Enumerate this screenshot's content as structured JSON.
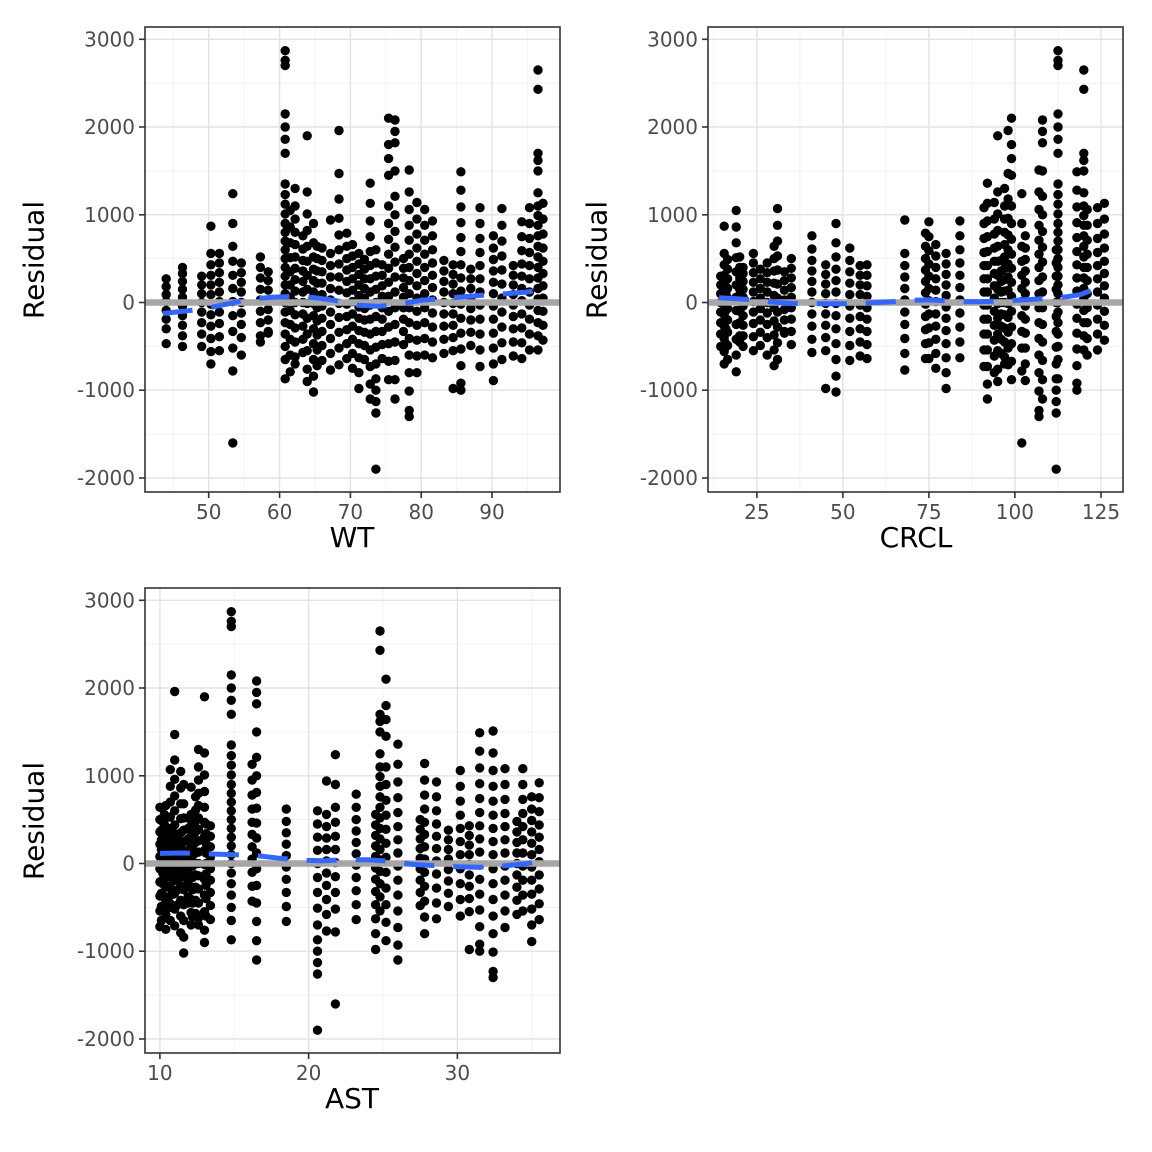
{
  "chart_data": {
    "type": "scatter",
    "ylabel": "Residual",
    "ylim": [
      -2160,
      3140
    ],
    "yticks": [
      -2000,
      -1000,
      0,
      1000,
      2000,
      3000
    ],
    "ytick_labels": [
      "-2000",
      "-1000",
      "0",
      "1000",
      "2000",
      "3000"
    ],
    "y_minor": [
      -1500,
      -500,
      500,
      1500,
      2500
    ],
    "reference_line_y": 0,
    "grid": true,
    "legend": "none",
    "colors": {
      "point": "#000000",
      "smoother": "#3366FF",
      "reference": "#A6A6A6",
      "grid_major": "#E3E3E3",
      "grid_minor": "#F1F1F1",
      "panel_border": "#333333",
      "tick_mark": "#333333",
      "tick_label": "#4D4D4D",
      "axis_title": "#000000",
      "background": "#FFFFFF"
    },
    "panels": [
      {
        "xlabel": "WT",
        "covariate": "wt",
        "xlim": [
          41.0,
          99.6
        ],
        "xticks": [
          50,
          60,
          70,
          80,
          90
        ],
        "xtick_labels": [
          "50",
          "60",
          "70",
          "80",
          "90"
        ],
        "x_minor": [
          45,
          55,
          65,
          75,
          85,
          95
        ],
        "smoother": [
          [
            43.5,
            -125
          ],
          [
            47,
            -95
          ],
          [
            50,
            -60
          ],
          [
            53,
            -10
          ],
          [
            56,
            40
          ],
          [
            59,
            60
          ],
          [
            62,
            70
          ],
          [
            65,
            55
          ],
          [
            68,
            20
          ],
          [
            71,
            -30
          ],
          [
            74,
            -45
          ],
          [
            77,
            -20
          ],
          [
            80,
            25
          ],
          [
            83,
            45
          ],
          [
            86,
            65
          ],
          [
            89,
            85
          ],
          [
            92,
            100
          ],
          [
            95,
            120
          ],
          [
            97.5,
            155
          ]
        ]
      },
      {
        "xlabel": "CRCL",
        "covariate": "crcl",
        "xlim": [
          10.8,
          131.4
        ],
        "xticks": [
          25,
          50,
          75,
          100,
          125
        ],
        "xtick_labels": [
          "25",
          "50",
          "75",
          "100",
          "125"
        ],
        "x_minor": [
          12.5,
          37.5,
          62.5,
          87.5,
          112.5
        ],
        "smoother": [
          [
            14,
            55
          ],
          [
            18,
            45
          ],
          [
            22,
            35
          ],
          [
            26,
            20
          ],
          [
            30,
            5
          ],
          [
            35,
            -10
          ],
          [
            40,
            -15
          ],
          [
            45,
            -15
          ],
          [
            50,
            -15
          ],
          [
            55,
            -10
          ],
          [
            60,
            0
          ],
          [
            65,
            10
          ],
          [
            70,
            25
          ],
          [
            75,
            30
          ],
          [
            80,
            20
          ],
          [
            85,
            10
          ],
          [
            90,
            10
          ],
          [
            95,
            15
          ],
          [
            100,
            25
          ],
          [
            105,
            35
          ],
          [
            110,
            50
          ],
          [
            115,
            65
          ],
          [
            119,
            90
          ],
          [
            123,
            150
          ],
          [
            126,
            230
          ]
        ]
      },
      {
        "xlabel": "AST",
        "covariate": "ast",
        "xlim": [
          9.0,
          36.9
        ],
        "xticks": [
          10,
          20,
          30
        ],
        "xtick_labels": [
          "10",
          "20",
          "30"
        ],
        "x_minor": [
          15,
          25,
          35
        ],
        "smoother": [
          [
            10,
            115
          ],
          [
            11.5,
            120
          ],
          [
            13,
            110
          ],
          [
            15,
            100
          ],
          [
            16.5,
            90
          ],
          [
            18,
            60
          ],
          [
            19.5,
            38
          ],
          [
            21,
            32
          ],
          [
            22.5,
            42
          ],
          [
            24,
            42
          ],
          [
            25.5,
            25
          ],
          [
            27,
            -10
          ],
          [
            28.5,
            -25
          ],
          [
            30,
            -38
          ],
          [
            31.5,
            -42
          ],
          [
            33,
            -30
          ],
          [
            34.5,
            -5
          ],
          [
            36,
            35
          ]
        ]
      }
    ],
    "subjects": [
      {
        "wt": 44.0,
        "crcl": 16.0,
        "ast": 11.2,
        "residuals": [
          270,
          180,
          90,
          10,
          -90,
          -190,
          -300,
          -470
        ]
      },
      {
        "wt": 46.3,
        "crcl": 21.0,
        "ast": 10.6,
        "residuals": [
          400,
          330,
          240,
          150,
          60,
          -40,
          -150,
          -260,
          -380,
          -500
        ]
      },
      {
        "wt": 50.3,
        "crcl": 15.5,
        "ast": 12.1,
        "residuals": [
          870,
          560,
          430,
          310,
          200,
          90,
          -20,
          -140,
          -270,
          -410,
          -560,
          -700
        ]
      },
      {
        "wt": 51.5,
        "crcl": 24.0,
        "ast": 10.3,
        "residuals": [
          560,
          450,
          340,
          230,
          120,
          10,
          -110,
          -240,
          -390,
          -550
        ]
      },
      {
        "wt": 53.4,
        "crcl": 102.0,
        "ast": 21.8,
        "residuals": [
          1240,
          900,
          640,
          470,
          310,
          160,
          10,
          -150,
          -330,
          -520,
          -780,
          -1600
        ]
      },
      {
        "wt": 54.6,
        "crcl": 28.0,
        "ast": 13.1,
        "residuals": [
          450,
          340,
          230,
          120,
          0,
          -120,
          -250,
          -400,
          -600
        ]
      },
      {
        "wt": 57.3,
        "crcl": 20.0,
        "ast": 11.9,
        "residuals": [
          520,
          400,
          280,
          150,
          30,
          -100,
          -230,
          -380,
          -450
        ]
      },
      {
        "wt": 58.4,
        "crcl": 33.0,
        "ast": 10.9,
        "residuals": [
          350,
          250,
          140,
          30,
          -80,
          -200,
          -330,
          -350
        ]
      },
      {
        "wt": 60.8,
        "crcl": 112.5,
        "ast": 14.8,
        "residuals": [
          2870,
          2760,
          2700,
          2150,
          2000,
          1860,
          1700,
          1350,
          1230,
          1120,
          1010,
          900,
          800,
          700,
          600,
          500,
          400,
          300,
          200,
          100,
          0,
          -110,
          -230,
          -360,
          -500,
          -650,
          -870
        ]
      },
      {
        "wt": 62.2,
        "crcl": 97.0,
        "ast": 12.6,
        "residuals": [
          1300,
          1100,
          950,
          800,
          660,
          520,
          390,
          260,
          130,
          0,
          -140,
          -290,
          -450,
          -620,
          -700
        ]
      },
      {
        "wt": 63.3,
        "crcl": 41.0,
        "ast": 12.4,
        "residuals": [
          760,
          610,
          480,
          360,
          240,
          120,
          0,
          -130,
          -270,
          -420,
          -570
        ]
      },
      {
        "wt": 63.9,
        "crcl": 95.0,
        "ast": 13.0,
        "residuals": [
          1900,
          1260,
          1010,
          820,
          640,
          470,
          310,
          150,
          -10,
          -180,
          -360,
          -550,
          -760,
          -900
        ]
      },
      {
        "wt": 64.8,
        "crcl": 48.0,
        "ast": 11.6,
        "residuals": [
          900,
          680,
          520,
          380,
          250,
          120,
          -10,
          -150,
          -300,
          -470,
          -650,
          -840,
          -1020
        ]
      },
      {
        "wt": 66.0,
        "crcl": 52.0,
        "ast": 18.5,
        "residuals": [
          620,
          480,
          350,
          220,
          90,
          -40,
          -180,
          -330,
          -490,
          -660
        ]
      },
      {
        "wt": 67.2,
        "crcl": 68.0,
        "ast": 21.2,
        "residuals": [
          940,
          560,
          420,
          290,
          160,
          30,
          -110,
          -250,
          -410,
          -580,
          -770
        ]
      },
      {
        "wt": 68.4,
        "crcl": 98.0,
        "ast": 11.0,
        "residuals": [
          1960,
          1470,
          1180,
          960,
          770,
          600,
          440,
          290,
          140,
          -10,
          -170,
          -340,
          -520,
          -710
        ]
      },
      {
        "wt": 69.5,
        "crcl": 74.0,
        "ast": 23.2,
        "residuals": [
          790,
          640,
          500,
          370,
          240,
          110,
          -20,
          -160,
          -310,
          -470,
          -640
        ]
      },
      {
        "wt": 70.3,
        "crcl": 77.0,
        "ast": 10.4,
        "residuals": [
          660,
          530,
          400,
          270,
          140,
          10,
          -130,
          -270,
          -420,
          -580,
          -750
        ]
      },
      {
        "wt": 71.2,
        "crcl": 80.0,
        "ast": 24.5,
        "residuals": [
          560,
          440,
          320,
          200,
          80,
          -50,
          -180,
          -320,
          -470,
          -630,
          -800,
          -980
        ]
      },
      {
        "wt": 72.0,
        "crcl": 16.5,
        "ast": 10.1,
        "residuals": [
          490,
          380,
          270,
          160,
          50,
          -70,
          -200,
          -340,
          -490,
          -650
        ]
      },
      {
        "wt": 72.8,
        "crcl": 92.0,
        "ast": 26.0,
        "residuals": [
          1360,
          1130,
          930,
          750,
          580,
          420,
          270,
          120,
          -30,
          -190,
          -360,
          -540,
          -730,
          -930,
          -1100
        ]
      },
      {
        "wt": 73.6,
        "crcl": 112.0,
        "ast": 20.6,
        "residuals": [
          600,
          450,
          300,
          150,
          0,
          -160,
          -330,
          -510,
          -700,
          -870,
          -1000,
          -1130,
          -1260,
          -1900
        ]
      },
      {
        "wt": 74.5,
        "crcl": 57.0,
        "ast": 13.4,
        "residuals": [
          430,
          310,
          190,
          70,
          -60,
          -190,
          -330,
          -480,
          -640
        ]
      },
      {
        "wt": 75.4,
        "crcl": 99.0,
        "ast": 25.2,
        "residuals": [
          2100,
          1800,
          1640,
          1450,
          1100,
          900,
          720,
          550,
          390,
          230,
          70,
          -100,
          -280,
          -470,
          -670,
          -880
        ]
      },
      {
        "wt": 76.3,
        "crcl": 108.0,
        "ast": 16.5,
        "residuals": [
          2080,
          1950,
          1820,
          1500,
          1210,
          1000,
          810,
          630,
          460,
          290,
          120,
          -60,
          -250,
          -450,
          -660,
          -880,
          -1100
        ]
      },
      {
        "wt": 77.5,
        "crcl": 35.0,
        "ast": 27.5,
        "residuals": [
          500,
          390,
          280,
          170,
          60,
          -60,
          -190,
          -330,
          -480
        ]
      },
      {
        "wt": 78.3,
        "crcl": 107.0,
        "ast": 32.4,
        "residuals": [
          1510,
          1260,
          1060,
          880,
          710,
          550,
          400,
          250,
          100,
          -60,
          -230,
          -410,
          -600,
          -800,
          -1010,
          -1230,
          -1300
        ]
      },
      {
        "wt": 79.4,
        "crcl": 94.0,
        "ast": 27.8,
        "residuals": [
          1140,
          950,
          780,
          620,
          470,
          330,
          190,
          50,
          -100,
          -260,
          -430,
          -610,
          -800
        ]
      },
      {
        "wt": 80.5,
        "crcl": 121.0,
        "ast": 30.2,
        "residuals": [
          1060,
          880,
          710,
          550,
          400,
          250,
          100,
          -60,
          -230,
          -410,
          -600
        ]
      },
      {
        "wt": 81.6,
        "crcl": 84.0,
        "ast": 28.6,
        "residuals": [
          930,
          760,
          600,
          450,
          310,
          170,
          30,
          -120,
          -280,
          -450,
          -630
        ]
      },
      {
        "wt": 83.2,
        "crcl": 96.0,
        "ast": 34.0,
        "residuals": [
          480,
          360,
          240,
          120,
          0,
          -130,
          -270,
          -420,
          -580
        ]
      },
      {
        "wt": 84.5,
        "crcl": 45.0,
        "ast": 30.8,
        "residuals": [
          430,
          320,
          210,
          100,
          -10,
          -130,
          -260,
          -400,
          -550,
          -980
        ]
      },
      {
        "wt": 85.6,
        "crcl": 118.0,
        "ast": 31.5,
        "residuals": [
          1490,
          1280,
          1090,
          910,
          740,
          580,
          430,
          280,
          130,
          -20,
          -180,
          -350,
          -530,
          -720,
          -920,
          -1000
        ]
      },
      {
        "wt": 87.0,
        "crcl": 26.0,
        "ast": 29.4,
        "residuals": [
          380,
          270,
          160,
          50,
          -70,
          -200,
          -340,
          -490
        ]
      },
      {
        "wt": 88.3,
        "crcl": 91.0,
        "ast": 33.2,
        "residuals": [
          1080,
          900,
          730,
          570,
          420,
          270,
          120,
          -30,
          -190,
          -360,
          -540,
          -730
        ]
      },
      {
        "wt": 90.2,
        "crcl": 103.0,
        "ast": 35.0,
        "residuals": [
          760,
          620,
          490,
          360,
          230,
          100,
          -40,
          -190,
          -350,
          -520,
          -700,
          -890
        ]
      },
      {
        "wt": 91.4,
        "crcl": 31.0,
        "ast": 10.7,
        "residuals": [
          1070,
          880,
          700,
          530,
          370,
          210,
          50,
          -110,
          -280,
          -460,
          -650
        ]
      },
      {
        "wt": 93.0,
        "crcl": 55.0,
        "ast": 12.2,
        "residuals": [
          420,
          310,
          200,
          90,
          -30,
          -160,
          -300,
          -450,
          -610
        ]
      },
      {
        "wt": 94.2,
        "crcl": 75.0,
        "ast": 35.5,
        "residuals": [
          920,
          750,
          590,
          440,
          300,
          160,
          20,
          -130,
          -290,
          -460,
          -640
        ]
      },
      {
        "wt": 95.3,
        "crcl": 124.0,
        "ast": 34.4,
        "residuals": [
          1080,
          900,
          730,
          570,
          420,
          270,
          120,
          -30,
          -190,
          -360,
          -540
        ]
      },
      {
        "wt": 96.5,
        "crcl": 120.0,
        "ast": 24.8,
        "residuals": [
          2650,
          2430,
          1700,
          1620,
          1500,
          1250,
          1100,
          990,
          880,
          760,
          640,
          520,
          400,
          280,
          160,
          40,
          -90,
          -230,
          -380,
          -540
        ]
      },
      {
        "wt": 97.2,
        "crcl": 126.0,
        "ast": 16.2,
        "residuals": [
          1130,
          950,
          780,
          620,
          470,
          330,
          190,
          50,
          -100,
          -260,
          -430
        ]
      },
      {
        "wt": 49.0,
        "crcl": 14.5,
        "ast": 10.2,
        "residuals": [
          300,
          200,
          100,
          0,
          -110,
          -230,
          -360,
          -500
        ]
      },
      {
        "wt": 61.5,
        "crcl": 19.0,
        "ast": 11.4,
        "residuals": [
          1050,
          860,
          680,
          510,
          350,
          200,
          60,
          -90,
          -250,
          -420,
          -600,
          -790
        ]
      },
      {
        "wt": 65.3,
        "crcl": 30.0,
        "ast": 10.0,
        "residuals": [
          640,
          500,
          360,
          220,
          80,
          -60,
          -210,
          -370,
          -540,
          -720
        ]
      }
    ]
  }
}
